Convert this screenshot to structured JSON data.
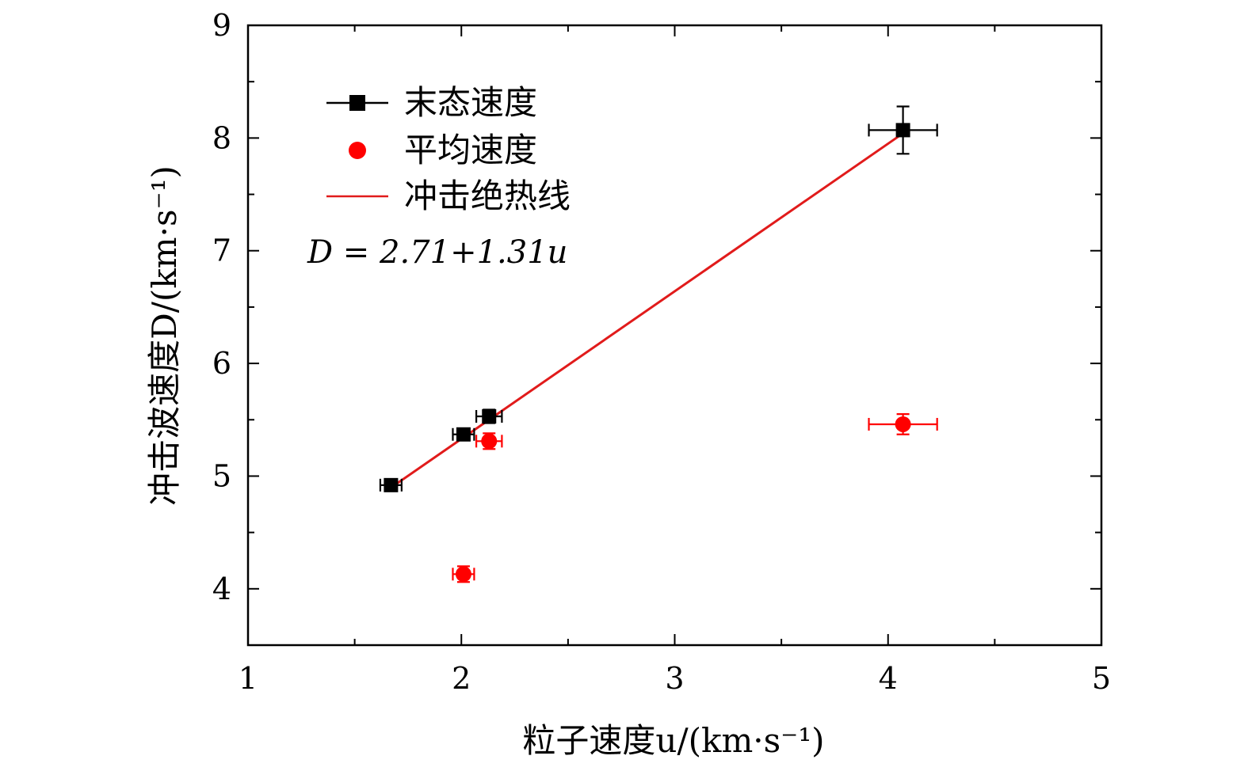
{
  "chart_data": {
    "type": "scatter",
    "xlabel": "粒子速度u/(km·s⁻¹)",
    "ylabel": "冲击波速度D/(km·s⁻¹)",
    "xlim": [
      1,
      5
    ],
    "ylim": [
      3.5,
      9
    ],
    "xticks": [
      "1",
      "2",
      "3",
      "4",
      "5"
    ],
    "yticks": [
      "4",
      "5",
      "6",
      "7",
      "8",
      "9"
    ],
    "series": [
      {
        "name": "末态速度",
        "marker": "square",
        "color": "#000000",
        "points": [
          {
            "x": 1.67,
            "y": 4.92,
            "xerr": 0.05,
            "yerr": 0.05
          },
          {
            "x": 2.01,
            "y": 5.37,
            "xerr": 0.05,
            "yerr": 0.05
          },
          {
            "x": 2.13,
            "y": 5.53,
            "xerr": 0.06,
            "yerr": 0.06
          },
          {
            "x": 4.07,
            "y": 8.07,
            "xerr": 0.16,
            "yerr": 0.21
          }
        ]
      },
      {
        "name": "平均速度",
        "marker": "circle",
        "color": "#ff0000",
        "points": [
          {
            "x": 2.01,
            "y": 4.13,
            "xerr": 0.05,
            "yerr": 0.07
          },
          {
            "x": 2.13,
            "y": 5.31,
            "xerr": 0.06,
            "yerr": 0.07
          },
          {
            "x": 4.07,
            "y": 5.46,
            "xerr": 0.16,
            "yerr": 0.09
          }
        ]
      },
      {
        "name": "冲击绝热线",
        "type": "line",
        "color": "#e11b1b",
        "x": [
          1.67,
          4.07
        ],
        "intercept": 2.71,
        "slope": 1.31
      }
    ],
    "annotation": "D = 2.71+1.31u",
    "legend_position": "top-left",
    "grid": false
  }
}
